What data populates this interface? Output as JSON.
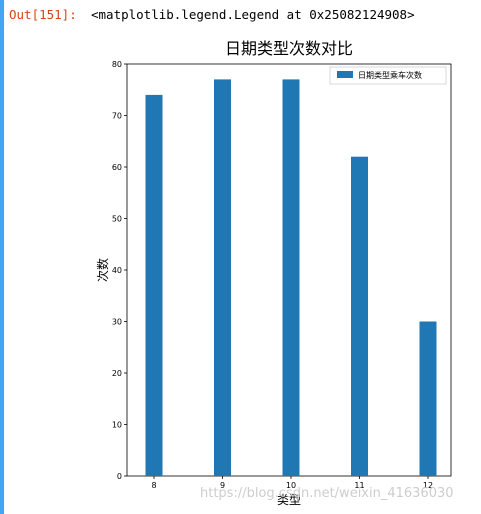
{
  "output": {
    "prompt": "Out[151]:",
    "text": "<matplotlib.legend.Legend at 0x25082124908>"
  },
  "chart_data": {
    "type": "bar",
    "title": "日期类型次数对比",
    "xlabel": "类型",
    "ylabel": "次数",
    "categories": [
      "8",
      "9",
      "10",
      "11",
      "12"
    ],
    "series": [
      {
        "name": "日期类型乘车次数",
        "values": [
          74,
          77,
          77,
          62,
          30
        ],
        "color": "#1f77b4"
      }
    ],
    "ylim": [
      0,
      80
    ],
    "yticks": [
      0,
      10,
      20,
      30,
      40,
      50,
      60,
      70,
      80
    ],
    "grid": false,
    "legend": "top-right"
  },
  "watermark": "https://blog.csdn.net/weixin_41636030"
}
